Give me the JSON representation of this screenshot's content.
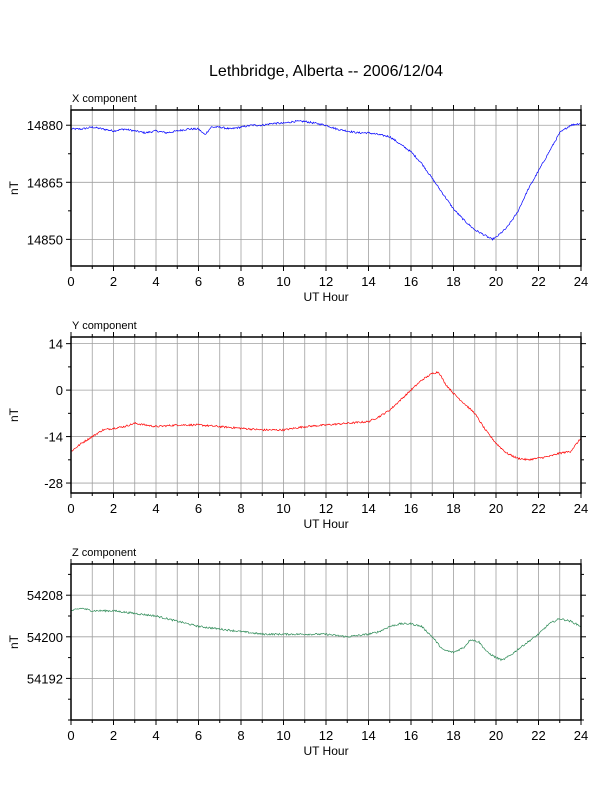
{
  "title": "Lethbridge, Alberta -- 2006/12/04",
  "chart_data": [
    {
      "type": "line",
      "panel_title": "X component",
      "xlabel": "UT Hour",
      "ylabel": "nT",
      "xlim": [
        0,
        24
      ],
      "ylim": [
        14843,
        14884
      ],
      "xticks": [
        0,
        2,
        4,
        6,
        8,
        10,
        12,
        14,
        16,
        18,
        20,
        22,
        24
      ],
      "yticks": [
        14850,
        14865,
        14880
      ],
      "grid": true,
      "color": "#0000ff",
      "x": [
        0,
        0.5,
        1,
        1.5,
        2,
        2.5,
        3,
        3.5,
        4,
        4.5,
        5,
        5.5,
        6,
        6.3,
        6.6,
        7,
        7.5,
        8,
        8.5,
        9,
        9.5,
        10,
        10.5,
        11,
        11.5,
        12,
        12.5,
        13,
        13.5,
        14,
        14.5,
        15,
        15.5,
        16,
        16.5,
        17,
        17.5,
        18,
        18.5,
        19,
        19.5,
        19.8,
        20,
        20.5,
        21,
        21.5,
        22,
        22.5,
        23,
        23.5,
        24
      ],
      "values": [
        14879,
        14879,
        14879.5,
        14879,
        14878.5,
        14879,
        14878.5,
        14878,
        14878.5,
        14878,
        14878.5,
        14879,
        14879,
        14877.5,
        14879.5,
        14879.5,
        14879,
        14879.5,
        14880,
        14880,
        14880.5,
        14880.5,
        14881,
        14881,
        14880.5,
        14880,
        14879,
        14878.5,
        14878,
        14878,
        14877.5,
        14877,
        14875,
        14873,
        14870,
        14866,
        14862,
        14858,
        14855,
        14852.5,
        14851,
        14850,
        14850.5,
        14853,
        14857,
        14863,
        14868,
        14873,
        14878,
        14880,
        14880.5
      ]
    },
    {
      "type": "line",
      "panel_title": "Y component",
      "xlabel": "UT Hour",
      "ylabel": "nT",
      "xlim": [
        0,
        24
      ],
      "ylim": [
        -31,
        16
      ],
      "xticks": [
        0,
        2,
        4,
        6,
        8,
        10,
        12,
        14,
        16,
        18,
        20,
        22,
        24
      ],
      "yticks": [
        -28,
        -14,
        0,
        14
      ],
      "grid": true,
      "color": "#ff0000",
      "x": [
        0,
        0.5,
        1,
        1.5,
        2,
        2.5,
        3,
        3.5,
        4,
        5,
        6,
        7,
        8,
        9,
        10,
        11,
        12,
        13,
        14,
        14.5,
        15,
        15.5,
        16,
        16.5,
        17,
        17.3,
        17.6,
        18,
        18.5,
        19,
        19.5,
        20,
        20.5,
        21,
        21.5,
        22,
        22.5,
        23,
        23.5,
        24
      ],
      "values": [
        -18.5,
        -16,
        -14,
        -12,
        -11.5,
        -11,
        -10,
        -10.5,
        -11,
        -10.5,
        -10.5,
        -11,
        -11.5,
        -12,
        -12,
        -11,
        -10.5,
        -10,
        -9.5,
        -8,
        -6,
        -3,
        0,
        3,
        5,
        5.5,
        2,
        -1,
        -4,
        -7,
        -12,
        -16,
        -19,
        -20.5,
        -21,
        -20.5,
        -20,
        -19,
        -18.5,
        -14.5
      ]
    },
    {
      "type": "line",
      "panel_title": "Z component",
      "xlabel": "UT Hour",
      "ylabel": "nT",
      "xlim": [
        0,
        24
      ],
      "ylim": [
        54184,
        54214
      ],
      "xticks": [
        0,
        2,
        4,
        6,
        8,
        10,
        12,
        14,
        16,
        18,
        20,
        22,
        24
      ],
      "yticks": [
        54192,
        54200,
        54208
      ],
      "grid": true,
      "color": "#2e8b57",
      "x": [
        0,
        0.5,
        1,
        2,
        3,
        4,
        5,
        6,
        7,
        8,
        9,
        10,
        11,
        12,
        13,
        14,
        14.5,
        15,
        15.5,
        16,
        16.5,
        17,
        17.5,
        18,
        18.5,
        18.8,
        19.2,
        19.6,
        20,
        20.3,
        20.7,
        21,
        21.5,
        22,
        22.5,
        23,
        23.5,
        24
      ],
      "values": [
        54205,
        54205.5,
        54205,
        54205,
        54204.5,
        54204,
        54203,
        54202,
        54201.5,
        54201,
        54200.5,
        54200.5,
        54200.5,
        54200.5,
        54200,
        54200.5,
        54201,
        54202,
        54202.5,
        54202.5,
        54202,
        54200,
        54197.5,
        54197,
        54198,
        54199.5,
        54199,
        54197,
        54196,
        54195.5,
        54196.5,
        54197.5,
        54199,
        54200.5,
        54202.5,
        54203.5,
        54203,
        54202
      ]
    }
  ]
}
